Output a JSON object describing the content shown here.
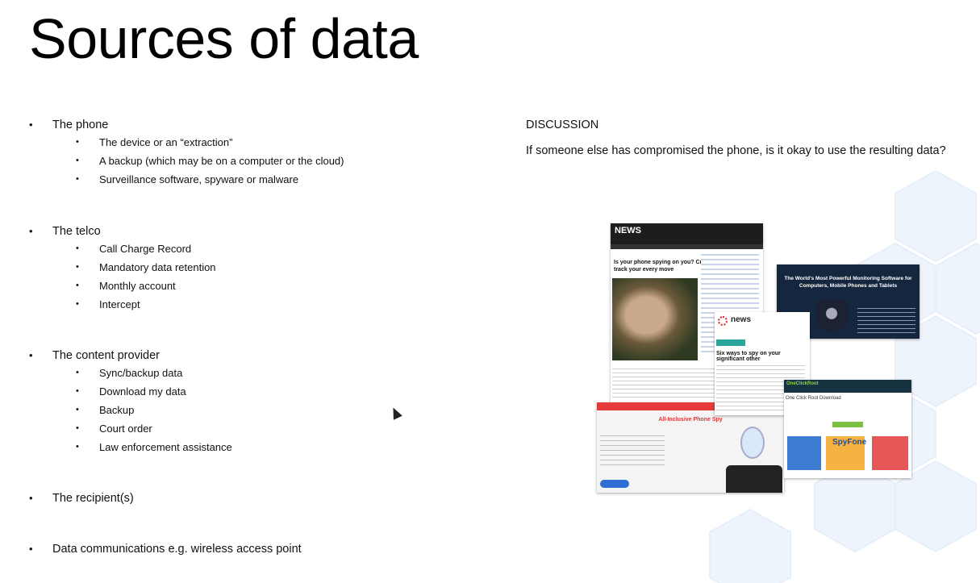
{
  "slide": {
    "title": "Sources of data",
    "bullets": [
      {
        "label": "The phone",
        "subitems": [
          "The device or an “extraction”",
          "A backup (which may be on a computer or the cloud)",
          "Surveillance software, spyware or malware"
        ]
      },
      {
        "label": "The telco",
        "subitems": [
          "Call Charge Record",
          "Mandatory data retention",
          "Monthly account",
          "Intercept"
        ]
      },
      {
        "label": "The content provider",
        "subitems": [
          "Sync/backup data",
          "Download my data",
          "Backup",
          "Court order",
          "Law enforcement assistance"
        ]
      },
      {
        "label": "The recipient(s)",
        "subitems": []
      },
      {
        "label": "Data communications e.g. wireless access point",
        "subitems": []
      }
    ],
    "discussion": {
      "heading": "DISCUSSION",
      "question": "If someone else has compromised the phone, is it okay to use the resulting data?"
    },
    "collage": {
      "abc_logo": "NEWS",
      "abc_headline": "Is your phone spying on you? Creepy apps that can track your every move",
      "monitoring_headline": "The World's Most Powerful Monitoring Software for Computers, Mobile Phones and Tablets",
      "news_logo": "news",
      "news_headline": "Six ways to spy on your significant other",
      "phone_spy_headline": "All-Inclusive Phone Spy",
      "one_click_title": "One Click Root Download",
      "one_click_brand": "OneClickRoot",
      "spyfone_label": "SpyFone"
    },
    "colors": {
      "background": "#ffffff",
      "text": "#111111",
      "hex_accent": "#e4eef8"
    }
  }
}
